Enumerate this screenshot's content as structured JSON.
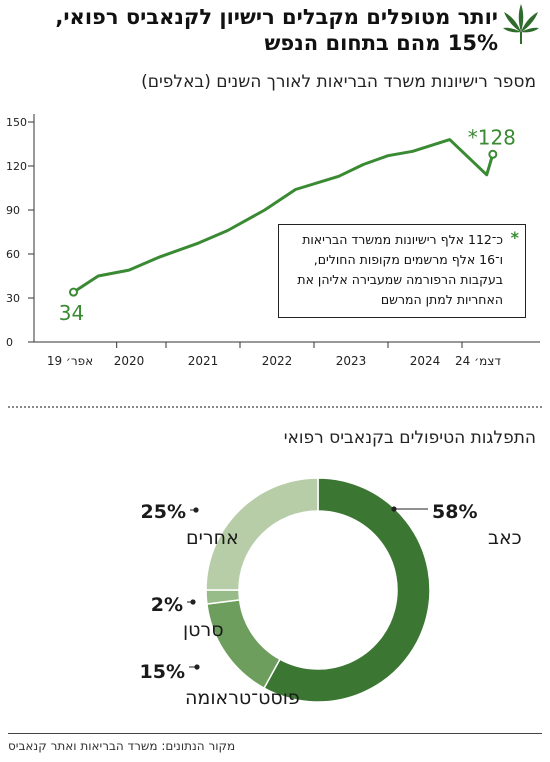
{
  "header": {
    "title": "יותר מטופלים מקבלים רישיון לקנאביס רפואי, 15% מהם בתחום הנפש",
    "icon": "cannabis-leaf-icon",
    "accent_color": "#3a7d34"
  },
  "chart_data": [
    {
      "type": "line",
      "title": "מספר רישיונות משרד הבריאות לאורך השנים (באלפים)",
      "x_tick_labels": [
        "אפר׳ 19",
        "2020",
        "2021",
        "2022",
        "2023",
        "2024",
        "דצמ׳ 24"
      ],
      "y_ticks": [
        0,
        30,
        60,
        90,
        120,
        150
      ],
      "ylim": [
        0,
        150
      ],
      "grid": false,
      "color": "#3a8a33",
      "series": [
        {
          "x": [
            "2019-04",
            "2019-08",
            "2020-01",
            "2020-06",
            "2020-12",
            "2021-05",
            "2021-11",
            "2022-04",
            "2022-11",
            "2023-03",
            "2023-07",
            "2023-11",
            "2024-05",
            "2024-11",
            "2024-12"
          ],
          "values": [
            34,
            45,
            49,
            58,
            67,
            76,
            90,
            104,
            113,
            121,
            127,
            130,
            138,
            114,
            128
          ]
        }
      ],
      "annotations": [
        {
          "x": "2019-04",
          "y": 34,
          "label": "34"
        },
        {
          "x": "2024-12",
          "y": 128,
          "label": "*128"
        }
      ],
      "footnote": {
        "mark": "*",
        "text": "כ־112 אלף רישיונות ממשרד הבריאות ו־16 אלף מרשמים מקופות החולים, בעקבות הרפורמה שמעבירה אליהן את האחריות למתן המרשם"
      }
    },
    {
      "type": "pie",
      "title": "התפלגות הטיפולים בקנאביס רפואי",
      "donut": true,
      "slices": [
        {
          "label": "כאב",
          "value": 58,
          "value_label": "58%",
          "color": "#3b7632"
        },
        {
          "label": "פוסט־טראומה",
          "value": 15,
          "value_label": "15%",
          "color": "#6e9e5e"
        },
        {
          "label": "סרטן",
          "value": 2,
          "value_label": "2%",
          "color": "#97bb89"
        },
        {
          "label": "אחרים",
          "value": 25,
          "value_label": "25%",
          "color": "#b6cda8"
        }
      ]
    }
  ],
  "source": "מקור הנתונים: משרד הבריאות ואתר קנאביס"
}
